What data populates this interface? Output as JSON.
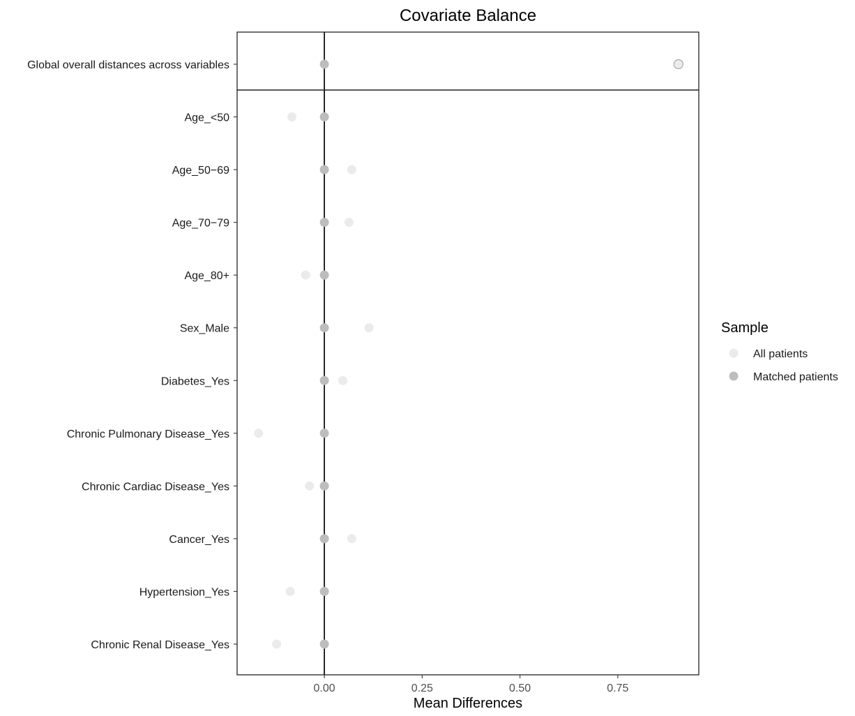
{
  "chart_data": {
    "type": "scatter",
    "title": "Covariate Balance",
    "xlabel": "Mean Differences",
    "ylabel": "",
    "xlim": [
      -0.223,
      0.957
    ],
    "xticks": [
      0,
      0.25,
      0.5,
      0.75
    ],
    "xtick_labels": [
      "0.00",
      "0.25",
      "0.50",
      "0.75"
    ],
    "zero_line": 0,
    "grid": false,
    "legend": {
      "title": "Sample",
      "placement": "right",
      "entries": [
        {
          "label": "All patients",
          "color": "#ebebeb"
        },
        {
          "label": "Matched patients",
          "color": "#bdbdbd"
        }
      ]
    },
    "panels": [
      {
        "categories": [
          "Global overall distances across variables"
        ],
        "series": [
          {
            "name": "All patients",
            "values": [
              0.905
            ]
          },
          {
            "name": "Matched patients",
            "values": [
              0.0
            ]
          }
        ]
      },
      {
        "categories": [
          "Age_<50",
          "Age_50−69",
          "Age_70−79",
          "Age_80+",
          "Sex_Male",
          "Diabetes_Yes",
          "Chronic Pulmonary Disease_Yes",
          "Chronic Cardiac Disease_Yes",
          "Cancer_Yes",
          "Hypertension_Yes",
          "Chronic Renal Disease_Yes"
        ],
        "series": [
          {
            "name": "All patients",
            "values": [
              -0.083,
              0.07,
              0.063,
              -0.048,
              0.114,
              0.047,
              -0.168,
              -0.038,
              0.07,
              -0.087,
              -0.122
            ]
          },
          {
            "name": "Matched patients",
            "values": [
              0,
              0,
              0,
              0,
              0,
              0,
              0,
              0,
              0,
              0,
              0
            ]
          }
        ]
      }
    ]
  }
}
